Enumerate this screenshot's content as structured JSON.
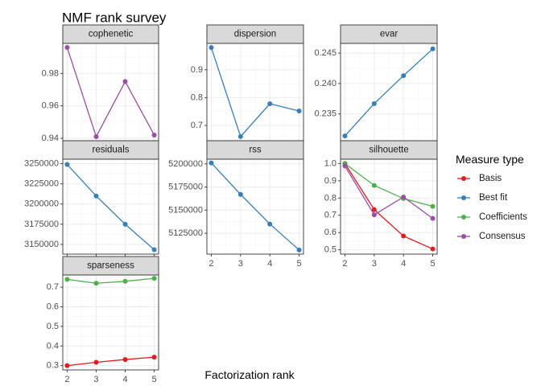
{
  "chart_data": {
    "type": "line",
    "title": "NMF rank survey",
    "xlabel": "Factorization rank",
    "x": [
      2,
      3,
      4,
      5
    ],
    "legend": {
      "title": "Measure type",
      "position": "right",
      "entries": [
        {
          "name": "Basis",
          "color": "#e41a1c"
        },
        {
          "name": "Best fit",
          "color": "#377eb8"
        },
        {
          "name": "Coefficients",
          "color": "#4daf4a"
        },
        {
          "name": "Consensus",
          "color": "#984ea3"
        }
      ]
    },
    "grid": true,
    "facets": [
      {
        "name": "cophenetic",
        "ylim": [
          0.9385,
          0.9985
        ],
        "yticks": [
          0.94,
          0.96,
          0.98
        ],
        "ytick_labels": [
          "0.94",
          "0.96",
          "0.98"
        ],
        "series": [
          {
            "name": "Consensus",
            "values": [
              0.996,
              0.941,
              0.975,
              0.942
            ]
          }
        ]
      },
      {
        "name": "dispersion",
        "ylim": [
          0.645,
          0.995
        ],
        "yticks": [
          0.7,
          0.8,
          0.9
        ],
        "ytick_labels": [
          "0.7",
          "0.8",
          "0.9"
        ],
        "series": [
          {
            "name": "Best fit",
            "values": [
              0.98,
              0.66,
              0.778,
              0.752
            ]
          }
        ]
      },
      {
        "name": "evar",
        "ylim": [
          0.2306,
          0.2466
        ],
        "yticks": [
          0.235,
          0.24,
          0.245
        ],
        "ytick_labels": [
          "0.235",
          "0.240",
          "0.245"
        ],
        "series": [
          {
            "name": "Best fit",
            "values": [
              0.2314,
              0.2367,
              0.2413,
              0.2457
            ]
          }
        ]
      },
      {
        "name": "residuals",
        "ylim": [
          3138000,
          3255500
        ],
        "yticks": [
          3150000,
          3175000,
          3200000,
          3225000,
          3250000
        ],
        "ytick_labels": [
          "3150000",
          "3175000",
          "3200000",
          "3225000",
          "3250000"
        ],
        "series": [
          {
            "name": "Best fit",
            "values": [
              3249000,
              3210000,
              3175000,
              3143500
            ]
          }
        ]
      },
      {
        "name": "rss",
        "ylim": [
          5102500,
          5205000
        ],
        "yticks": [
          5125000,
          5150000,
          5175000,
          5200000
        ],
        "ytick_labels": [
          "5125000",
          "5150000",
          "5175000",
          "5200000"
        ],
        "series": [
          {
            "name": "Best fit",
            "values": [
              5201000,
              5167000,
              5135000,
              5107000
            ]
          }
        ]
      },
      {
        "name": "silhouette",
        "ylim": [
          0.475,
          1.025
        ],
        "yticks": [
          0.5,
          0.6,
          0.7,
          0.8,
          0.9,
          1.0
        ],
        "ytick_labels": [
          "0.5",
          "0.6",
          "0.7",
          "0.8",
          "0.9",
          "1.0"
        ],
        "series": [
          {
            "name": "Basis",
            "values": [
              1.0,
              0.733,
              0.58,
              0.505
            ]
          },
          {
            "name": "Coefficients",
            "values": [
              1.0,
              0.873,
              0.797,
              0.752
            ]
          },
          {
            "name": "Consensus",
            "values": [
              0.986,
              0.703,
              0.806,
              0.682
            ]
          }
        ]
      },
      {
        "name": "sparseness",
        "ylim": [
          0.278,
          0.762
        ],
        "yticks": [
          0.3,
          0.4,
          0.5,
          0.6,
          0.7
        ],
        "ytick_labels": [
          "0.3",
          "0.4",
          "0.5",
          "0.6",
          "0.7"
        ],
        "series": [
          {
            "name": "Basis",
            "values": [
              0.3,
              0.317,
              0.331,
              0.343
            ]
          },
          {
            "name": "Coefficients",
            "values": [
              0.74,
              0.72,
              0.73,
              0.745
            ]
          }
        ]
      }
    ]
  }
}
